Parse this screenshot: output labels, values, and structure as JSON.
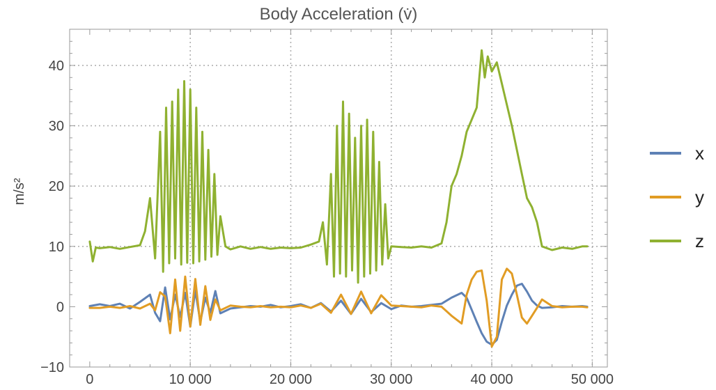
{
  "chart_data": {
    "type": "line",
    "title": "Body Acceleration (v̇)",
    "xlabel": "",
    "ylabel": "m/s²",
    "xlim": [
      -2000,
      51500
    ],
    "ylim": [
      -10,
      46
    ],
    "xticks": [
      0,
      10000,
      20000,
      30000,
      40000,
      50000
    ],
    "xtick_labels": [
      "0",
      "10 000",
      "20 000",
      "30 000",
      "40 000",
      "50 000"
    ],
    "yticks": [
      -10,
      0,
      10,
      20,
      30,
      40
    ],
    "ytick_labels": [
      "−10",
      "0",
      "10",
      "20",
      "30",
      "40"
    ],
    "grid": true,
    "legend_position": "right",
    "series": [
      {
        "name": "x",
        "color": "#5E81B5",
        "points": [
          [
            0,
            0.1
          ],
          [
            1000,
            0.4
          ],
          [
            2000,
            0.1
          ],
          [
            3000,
            0.5
          ],
          [
            4000,
            -0.3
          ],
          [
            5000,
            0.8
          ],
          [
            6000,
            2.0
          ],
          [
            6500,
            -1.0
          ],
          [
            7000,
            -2.4
          ],
          [
            7500,
            3.2
          ],
          [
            8000,
            -2.1
          ],
          [
            8500,
            2.0
          ],
          [
            9000,
            -1.7
          ],
          [
            9500,
            2.3
          ],
          [
            10000,
            -3.3
          ],
          [
            10500,
            2.7
          ],
          [
            11000,
            -2.5
          ],
          [
            11500,
            1.5
          ],
          [
            12000,
            -1.0
          ],
          [
            12500,
            2.6
          ],
          [
            13000,
            -1.1
          ],
          [
            14000,
            -0.3
          ],
          [
            15000,
            -0.1
          ],
          [
            16000,
            0.1
          ],
          [
            17000,
            0.0
          ],
          [
            18000,
            0.3
          ],
          [
            19000,
            -0.1
          ],
          [
            20000,
            0.1
          ],
          [
            21000,
            0.4
          ],
          [
            22000,
            -0.2
          ],
          [
            23000,
            0.6
          ],
          [
            24000,
            -0.8
          ],
          [
            25000,
            1.0
          ],
          [
            26000,
            -1.2
          ],
          [
            27000,
            1.3
          ],
          [
            28000,
            -0.9
          ],
          [
            29000,
            0.6
          ],
          [
            30000,
            -0.4
          ],
          [
            31000,
            0.2
          ],
          [
            32000,
            0.0
          ],
          [
            33000,
            0.1
          ],
          [
            34000,
            0.3
          ],
          [
            35000,
            0.5
          ],
          [
            36000,
            1.5
          ],
          [
            37000,
            2.3
          ],
          [
            37500,
            1.5
          ],
          [
            38000,
            -0.5
          ],
          [
            38500,
            -2.5
          ],
          [
            39000,
            -4.4
          ],
          [
            39500,
            -5.8
          ],
          [
            40000,
            -6.3
          ],
          [
            40500,
            -5.5
          ],
          [
            41000,
            -2.5
          ],
          [
            41500,
            0.2
          ],
          [
            42000,
            2.0
          ],
          [
            42500,
            3.5
          ],
          [
            43000,
            3.8
          ],
          [
            43500,
            2.5
          ],
          [
            44000,
            1.0
          ],
          [
            44500,
            0.2
          ],
          [
            45000,
            -0.2
          ],
          [
            46000,
            -0.1
          ],
          [
            47000,
            0.1
          ],
          [
            48000,
            0.0
          ],
          [
            49000,
            0.1
          ],
          [
            49500,
            0.0
          ]
        ]
      },
      {
        "name": "y",
        "color": "#E19C24",
        "points": [
          [
            0,
            -0.2
          ],
          [
            1000,
            -0.2
          ],
          [
            2000,
            0.0
          ],
          [
            3000,
            -0.2
          ],
          [
            4000,
            0.1
          ],
          [
            5000,
            -0.3
          ],
          [
            6000,
            0.5
          ],
          [
            6500,
            -0.6
          ],
          [
            7000,
            2.4
          ],
          [
            7500,
            1.7
          ],
          [
            8000,
            -4.4
          ],
          [
            8500,
            4.5
          ],
          [
            9000,
            -4.0
          ],
          [
            9500,
            5.0
          ],
          [
            10000,
            -3.3
          ],
          [
            10500,
            4.6
          ],
          [
            11000,
            -3.0
          ],
          [
            11500,
            3.4
          ],
          [
            12000,
            -2.2
          ],
          [
            12500,
            1.2
          ],
          [
            13000,
            -0.6
          ],
          [
            14000,
            0.2
          ],
          [
            15000,
            0.0
          ],
          [
            16000,
            -0.1
          ],
          [
            17000,
            0.1
          ],
          [
            18000,
            -0.1
          ],
          [
            19000,
            0.0
          ],
          [
            20000,
            -0.1
          ],
          [
            21000,
            0.2
          ],
          [
            22000,
            -0.2
          ],
          [
            23000,
            0.5
          ],
          [
            24000,
            -1.0
          ],
          [
            25000,
            2.0
          ],
          [
            26000,
            -1.2
          ],
          [
            27000,
            2.5
          ],
          [
            28000,
            -1.1
          ],
          [
            29000,
            1.9
          ],
          [
            30000,
            0.2
          ],
          [
            31000,
            0.1
          ],
          [
            32000,
            0.0
          ],
          [
            33000,
            -0.1
          ],
          [
            34000,
            0.2
          ],
          [
            35000,
            0.0
          ],
          [
            36000,
            -1.5
          ],
          [
            37000,
            -2.8
          ],
          [
            37500,
            2.0
          ],
          [
            38000,
            4.5
          ],
          [
            38500,
            5.8
          ],
          [
            39000,
            6.0
          ],
          [
            39500,
            1.0
          ],
          [
            40000,
            -6.6
          ],
          [
            40500,
            -5.0
          ],
          [
            41000,
            4.5
          ],
          [
            41500,
            6.3
          ],
          [
            42000,
            5.5
          ],
          [
            42500,
            2.0
          ],
          [
            43000,
            -1.8
          ],
          [
            43500,
            -2.8
          ],
          [
            44000,
            -1.5
          ],
          [
            44500,
            -0.2
          ],
          [
            45000,
            1.2
          ],
          [
            46000,
            0.1
          ],
          [
            47000,
            -0.1
          ],
          [
            48000,
            0.0
          ],
          [
            49000,
            0.0
          ],
          [
            49500,
            -0.1
          ]
        ]
      },
      {
        "name": "z",
        "color": "#8FB131",
        "points": [
          [
            0,
            10.8
          ],
          [
            300,
            7.5
          ],
          [
            600,
            9.8
          ],
          [
            1000,
            9.7
          ],
          [
            2000,
            9.9
          ],
          [
            3000,
            9.6
          ],
          [
            4000,
            9.9
          ],
          [
            5000,
            10.2
          ],
          [
            5500,
            12.5
          ],
          [
            6000,
            18.0
          ],
          [
            6500,
            8.0
          ],
          [
            7000,
            29.0
          ],
          [
            7300,
            5.8
          ],
          [
            7600,
            33.0
          ],
          [
            7900,
            7.2
          ],
          [
            8200,
            34.0
          ],
          [
            8500,
            8.0
          ],
          [
            8800,
            36.0
          ],
          [
            9100,
            7.0
          ],
          [
            9400,
            37.4
          ],
          [
            9700,
            7.3
          ],
          [
            10000,
            36.0
          ],
          [
            10300,
            7.2
          ],
          [
            10600,
            33.0
          ],
          [
            10900,
            7.5
          ],
          [
            11200,
            29.0
          ],
          [
            11500,
            7.8
          ],
          [
            11800,
            26.0
          ],
          [
            12100,
            8.3
          ],
          [
            12400,
            22.0
          ],
          [
            12700,
            8.6
          ],
          [
            13000,
            15.0
          ],
          [
            13500,
            10.0
          ],
          [
            14000,
            9.5
          ],
          [
            15000,
            10.0
          ],
          [
            16000,
            9.6
          ],
          [
            17000,
            9.9
          ],
          [
            18000,
            9.6
          ],
          [
            19000,
            9.8
          ],
          [
            20000,
            9.7
          ],
          [
            21000,
            9.8
          ],
          [
            22000,
            10.3
          ],
          [
            22800,
            10.8
          ],
          [
            23200,
            14.0
          ],
          [
            23600,
            7.0
          ],
          [
            24000,
            22.0
          ],
          [
            24300,
            5.0
          ],
          [
            24600,
            30.0
          ],
          [
            24900,
            5.5
          ],
          [
            25200,
            34.0
          ],
          [
            25500,
            5.0
          ],
          [
            25800,
            32.0
          ],
          [
            26100,
            6.0
          ],
          [
            26400,
            28.0
          ],
          [
            26700,
            4.0
          ],
          [
            27000,
            30.0
          ],
          [
            27300,
            5.0
          ],
          [
            27600,
            31.0
          ],
          [
            27900,
            5.5
          ],
          [
            28200,
            29.0
          ],
          [
            28500,
            6.0
          ],
          [
            28800,
            24.0
          ],
          [
            29100,
            7.0
          ],
          [
            29400,
            17.0
          ],
          [
            29700,
            8.0
          ],
          [
            30000,
            10.0
          ],
          [
            31000,
            9.9
          ],
          [
            32000,
            9.8
          ],
          [
            33000,
            10.0
          ],
          [
            34000,
            9.8
          ],
          [
            35000,
            10.5
          ],
          [
            35500,
            14.0
          ],
          [
            36000,
            20.0
          ],
          [
            36500,
            22.0
          ],
          [
            37000,
            25.0
          ],
          [
            37500,
            29.0
          ],
          [
            38000,
            31.0
          ],
          [
            38500,
            33.0
          ],
          [
            39000,
            42.5
          ],
          [
            39300,
            38.0
          ],
          [
            39600,
            41.5
          ],
          [
            40000,
            39.0
          ],
          [
            40500,
            40.5
          ],
          [
            41000,
            37.0
          ],
          [
            41500,
            33.5
          ],
          [
            42000,
            30.0
          ],
          [
            42500,
            26.0
          ],
          [
            43000,
            22.0
          ],
          [
            43500,
            18.0
          ],
          [
            44000,
            16.5
          ],
          [
            44500,
            14.0
          ],
          [
            45000,
            10.0
          ],
          [
            46000,
            9.4
          ],
          [
            47000,
            9.8
          ],
          [
            48000,
            9.6
          ],
          [
            49000,
            10.0
          ],
          [
            49500,
            10.0
          ]
        ]
      }
    ]
  }
}
